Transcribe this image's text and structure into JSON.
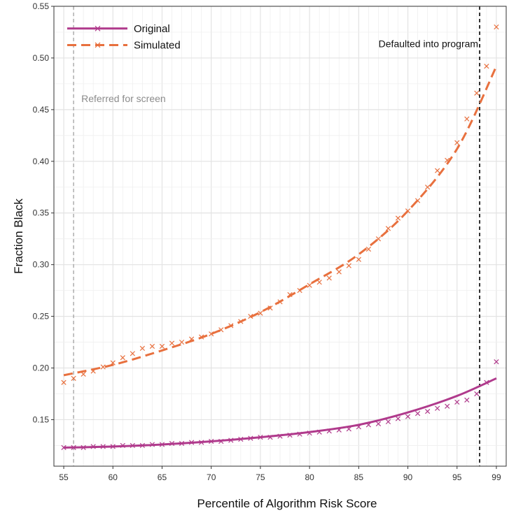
{
  "chart_data": {
    "type": "line",
    "xlabel": "Percentile of Algorithm Risk Score",
    "ylabel": "Fraction Black",
    "xlim": [
      54,
      100
    ],
    "ylim": [
      0.105,
      0.55
    ],
    "x_ticks": [
      55,
      60,
      65,
      70,
      75,
      80,
      85,
      90,
      95,
      99
    ],
    "y_ticks": [
      0.15,
      0.2,
      0.25,
      0.3,
      0.35,
      0.4,
      0.45,
      0.5,
      0.55
    ],
    "y_tick_labels": [
      "0.15",
      "0.20",
      "0.25",
      "0.30",
      "0.35",
      "0.40",
      "0.45",
      "0.50",
      "0.55"
    ],
    "grid": true,
    "legend_position": "top-left",
    "series": [
      {
        "name": "Original",
        "color": "#b03a8c",
        "line_style": "solid",
        "marker": "x",
        "points_x": [
          55,
          56,
          57,
          58,
          59,
          60,
          61,
          62,
          63,
          64,
          65,
          66,
          67,
          68,
          69,
          70,
          71,
          72,
          73,
          74,
          75,
          76,
          77,
          78,
          79,
          80,
          81,
          82,
          83,
          84,
          85,
          86,
          87,
          88,
          89,
          90,
          91,
          92,
          93,
          94,
          95,
          96,
          97,
          98,
          99
        ],
        "points_y": [
          0.123,
          0.123,
          0.123,
          0.124,
          0.124,
          0.124,
          0.125,
          0.125,
          0.125,
          0.126,
          0.126,
          0.127,
          0.127,
          0.128,
          0.128,
          0.129,
          0.129,
          0.13,
          0.131,
          0.132,
          0.133,
          0.133,
          0.134,
          0.135,
          0.136,
          0.137,
          0.138,
          0.139,
          0.14,
          0.141,
          0.143,
          0.145,
          0.146,
          0.148,
          0.151,
          0.153,
          0.156,
          0.158,
          0.161,
          0.163,
          0.167,
          0.169,
          0.175,
          0.186,
          0.206
        ],
        "fit_x": [
          55,
          60,
          65,
          70,
          75,
          80,
          85,
          90,
          95,
          99
        ],
        "fit_y": [
          0.123,
          0.124,
          0.126,
          0.129,
          0.133,
          0.138,
          0.145,
          0.157,
          0.173,
          0.19
        ]
      },
      {
        "name": "Simulated",
        "color": "#e8703e",
        "line_style": "dashed",
        "marker": "x",
        "points_x": [
          55,
          56,
          57,
          58,
          59,
          60,
          61,
          62,
          63,
          64,
          65,
          66,
          67,
          68,
          69,
          70,
          71,
          72,
          73,
          74,
          75,
          76,
          77,
          78,
          79,
          80,
          81,
          82,
          83,
          84,
          85,
          86,
          87,
          88,
          89,
          90,
          91,
          92,
          93,
          94,
          95,
          96,
          97,
          98,
          99
        ],
        "points_y": [
          0.186,
          0.19,
          0.194,
          0.197,
          0.201,
          0.205,
          0.21,
          0.214,
          0.219,
          0.221,
          0.221,
          0.224,
          0.225,
          0.228,
          0.23,
          0.233,
          0.237,
          0.241,
          0.245,
          0.25,
          0.253,
          0.258,
          0.264,
          0.271,
          0.275,
          0.28,
          0.283,
          0.287,
          0.293,
          0.299,
          0.305,
          0.315,
          0.325,
          0.335,
          0.345,
          0.352,
          0.362,
          0.375,
          0.391,
          0.401,
          0.418,
          0.441,
          0.466,
          0.492,
          0.53
        ],
        "fit_x": [
          55,
          60,
          65,
          70,
          75,
          80,
          85,
          90,
          95,
          99
        ],
        "fit_y": [
          0.193,
          0.203,
          0.217,
          0.233,
          0.254,
          0.281,
          0.31,
          0.352,
          0.412,
          0.492
        ]
      }
    ],
    "annotations": [
      {
        "text": "Referred for screen",
        "x": 56,
        "line_style": "dashed",
        "color": "#999999"
      },
      {
        "text": "Defaulted into program",
        "x": 97.3,
        "line_style": "dashed",
        "color": "#000000"
      }
    ]
  }
}
